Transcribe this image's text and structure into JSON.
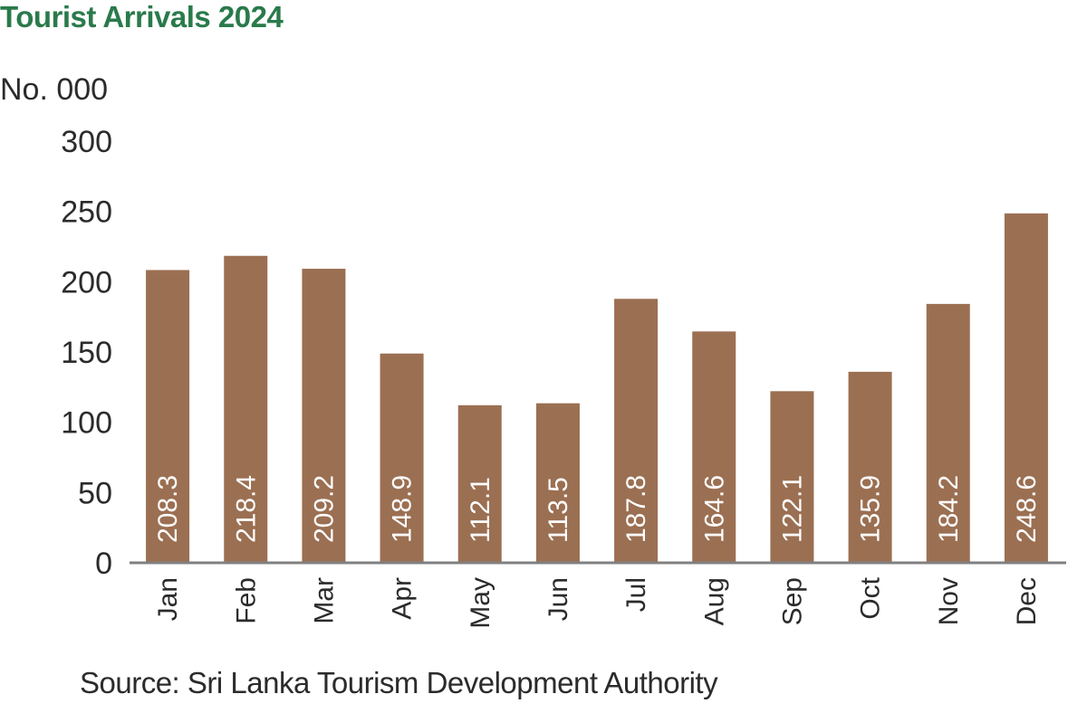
{
  "chart_data": {
    "type": "bar",
    "title": "Tourist Arrivals 2024",
    "ylabel": "No. 000",
    "xlabel": "",
    "categories": [
      "Jan",
      "Feb",
      "Mar",
      "Apr",
      "May",
      "Jun",
      "Jul",
      "Aug",
      "Sep",
      "Oct",
      "Nov",
      "Dec"
    ],
    "values": [
      208.3,
      218.4,
      209.2,
      148.9,
      112.1,
      113.5,
      187.8,
      164.6,
      122.1,
      135.9,
      184.2,
      248.6
    ],
    "value_labels": [
      "208.3",
      "218.4",
      "209.2",
      "148.9",
      "112.1",
      "113.5",
      "187.8",
      "164.6",
      "122.1",
      "135.9",
      "184.2",
      "248.6"
    ],
    "ylim": [
      0,
      300
    ],
    "yticks": [
      "0",
      "50",
      "100",
      "150",
      "200",
      "250",
      "300"
    ],
    "grid": false,
    "bar_color": "#9b6f52",
    "title_color": "#2a7a4b",
    "axis_color": "#808080"
  },
  "source": "Source: Sri Lanka Tourism Development Authority"
}
